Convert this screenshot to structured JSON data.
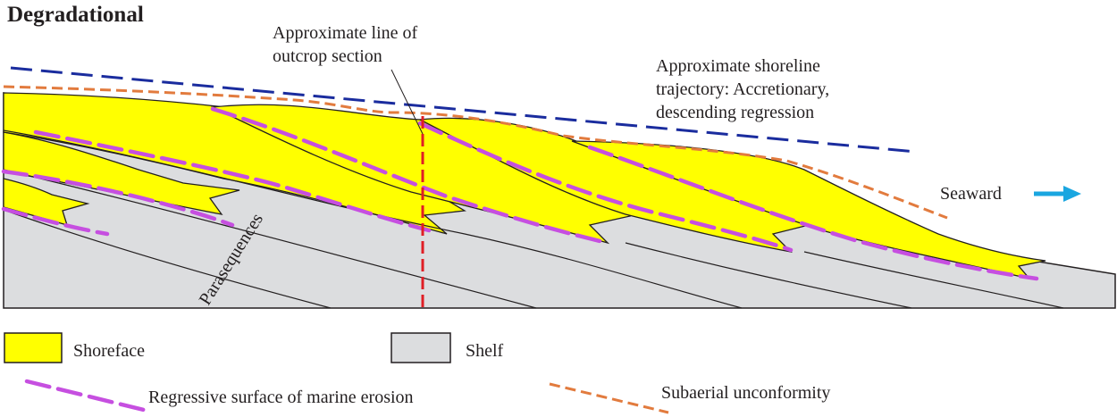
{
  "title": "Degradational",
  "annotations": {
    "outcrop_line": [
      "Approximate line of",
      "outcrop section"
    ],
    "shoreline_trajectory": [
      "Approximate shoreline",
      "trajectory: Accretionary,",
      "descending regression"
    ],
    "seaward": "Seaward",
    "parasequences": "Parasequences"
  },
  "legend": {
    "shoreface": "Shoreface",
    "shelf": "Shelf",
    "rsme": "Regressive surface of marine erosion",
    "unconformity": "Subaerial unconformity"
  },
  "colors": {
    "shoreface": "#ffff00",
    "shelf": "#dcdddf",
    "rsme": "#c64fe0",
    "unconformity": "#e27b3e",
    "trajectory": "#1a2c9e",
    "outcrop": "#e01e25",
    "seaward_arrow": "#1aa6e0"
  }
}
